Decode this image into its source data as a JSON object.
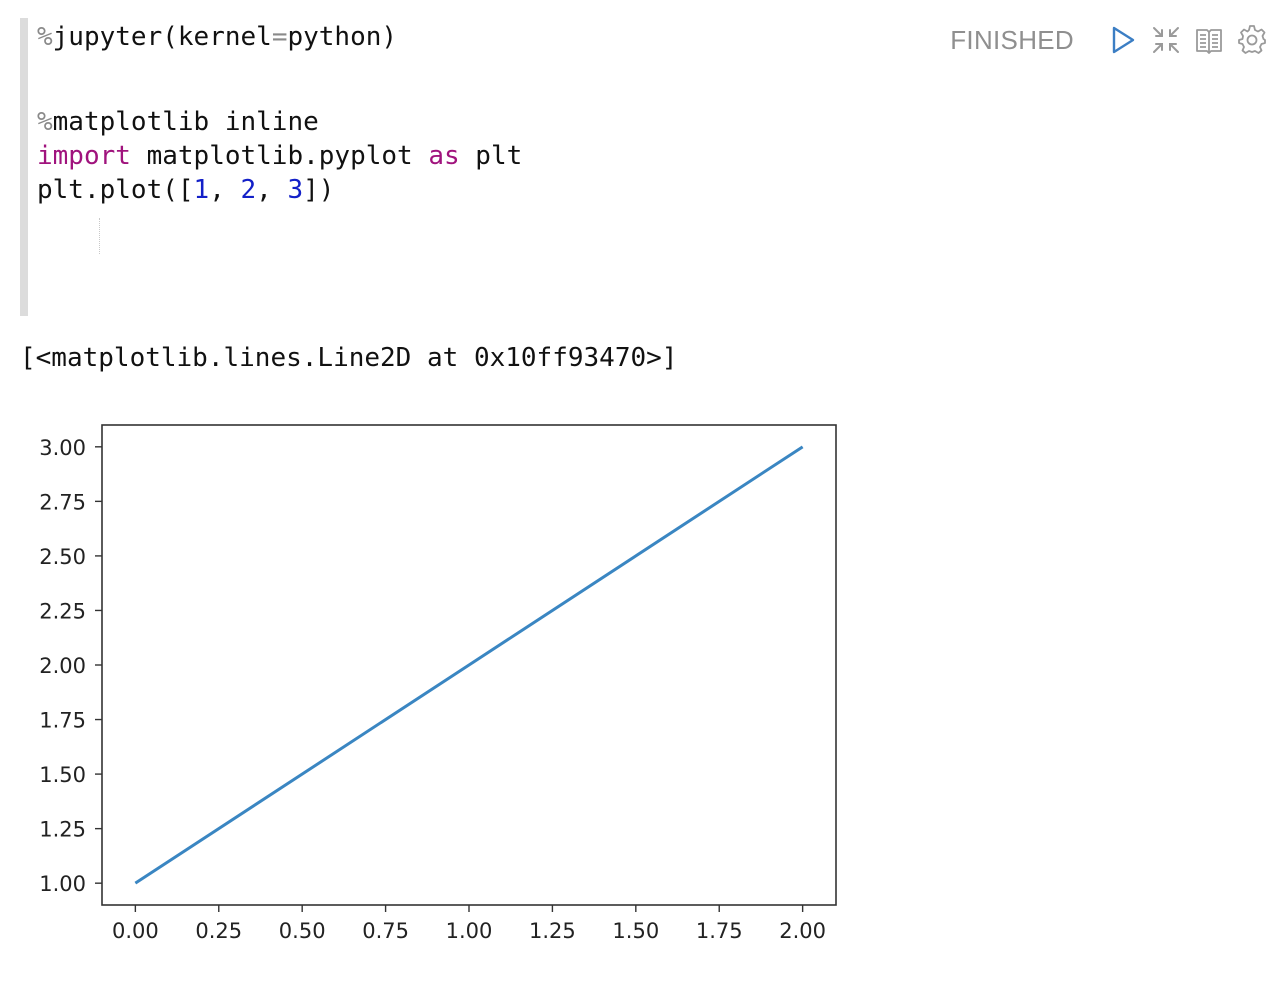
{
  "cell": {
    "status": "FINISHED",
    "code_lines": [
      [
        {
          "t": "%",
          "c": "op"
        },
        {
          "t": "jupyter(kernel",
          "c": ""
        },
        {
          "t": "=",
          "c": "op"
        },
        {
          "t": "python)",
          "c": ""
        }
      ],
      [],
      [
        {
          "t": "%",
          "c": "op"
        },
        {
          "t": "matplotlib inline",
          "c": ""
        }
      ],
      [
        {
          "t": "import",
          "c": "kw"
        },
        {
          "t": " matplotlib.pyplot ",
          "c": ""
        },
        {
          "t": "as",
          "c": "kw"
        },
        {
          "t": " plt",
          "c": ""
        }
      ],
      [
        {
          "t": "plt.plot([",
          "c": ""
        },
        {
          "t": "1",
          "c": "num"
        },
        {
          "t": ", ",
          "c": ""
        },
        {
          "t": "2",
          "c": "num"
        },
        {
          "t": ", ",
          "c": ""
        },
        {
          "t": "3",
          "c": "num"
        },
        {
          "t": "])",
          "c": ""
        }
      ]
    ],
    "toolbar_icons": [
      "run-icon",
      "collapse-icon",
      "book-icon",
      "gear-icon"
    ]
  },
  "output": {
    "text": "[<matplotlib.lines.Line2D at 0x10ff93470>]"
  },
  "chart_data": {
    "type": "line",
    "title": "",
    "xlabel": "",
    "ylabel": "",
    "x": [
      0,
      1,
      2
    ],
    "series": [
      {
        "values": [
          1,
          2,
          3
        ],
        "color": "#3a86c2"
      }
    ],
    "xlim": [
      -0.1,
      2.1
    ],
    "ylim": [
      0.9,
      3.1
    ],
    "x_ticks": [
      0.0,
      0.25,
      0.5,
      0.75,
      1.0,
      1.25,
      1.5,
      1.75,
      2.0
    ],
    "x_tick_labels": [
      "0.00",
      "0.25",
      "0.50",
      "0.75",
      "1.00",
      "1.25",
      "1.50",
      "1.75",
      "2.00"
    ],
    "y_ticks": [
      1.0,
      1.25,
      1.5,
      1.75,
      2.0,
      2.25,
      2.5,
      2.75,
      3.0
    ],
    "y_tick_labels": [
      "1.00",
      "1.25",
      "1.50",
      "1.75",
      "2.00",
      "2.25",
      "2.50",
      "2.75",
      "3.00"
    ],
    "grid": false,
    "legend": "none"
  },
  "colors": {
    "keyword": "#a0137d",
    "number": "#1320c8",
    "status": "#8f8f8f",
    "run_icon": "#3b7ec4",
    "line": "#3a86c2"
  }
}
